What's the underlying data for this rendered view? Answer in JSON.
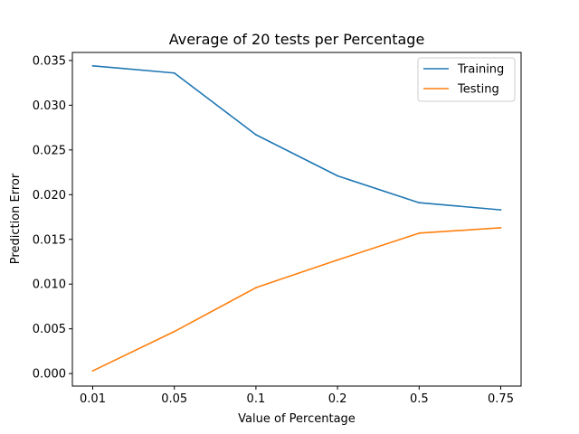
{
  "chart_data": {
    "type": "line",
    "title": "Average of 20 tests per Percentage",
    "xlabel": "Value of Percentage",
    "ylabel": "Prediction Error",
    "categories": [
      "0.01",
      "0.05",
      "0.1",
      "0.2",
      "0.5",
      "0.75"
    ],
    "y_ticks": [
      "0.000",
      "0.005",
      "0.010",
      "0.015",
      "0.020",
      "0.025",
      "0.030",
      "0.035"
    ],
    "ylim": [
      -0.0014,
      0.0359
    ],
    "grid": false,
    "legend_position": "top-right",
    "series": [
      {
        "name": "Training",
        "color": "#1f77b4",
        "values": [
          0.0344,
          0.0336,
          0.0267,
          0.0221,
          0.0191,
          0.0183
        ]
      },
      {
        "name": "Testing",
        "color": "#ff7f0e",
        "values": [
          0.0003,
          0.0047,
          0.0096,
          0.0127,
          0.0157,
          0.0163
        ]
      }
    ]
  }
}
